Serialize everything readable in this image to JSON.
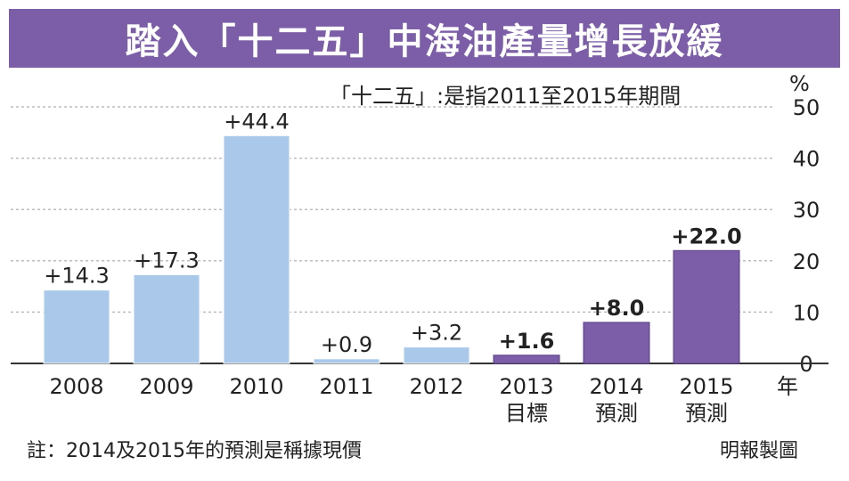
{
  "chart_data": {
    "type": "bar",
    "title": "踏入「十二五」中海油產量增長放緩",
    "subtitle": "「十二五」:是指2011至2015年期間",
    "ylabel": "%",
    "xlabel": "年",
    "ylim": [
      0,
      50
    ],
    "yticks": [
      "0",
      "10",
      "20",
      "30",
      "40",
      "50"
    ],
    "grid": true,
    "categories": [
      "2008",
      "2009",
      "2010",
      "2011",
      "2012",
      "2013",
      "2014",
      "2015"
    ],
    "category_sublabels": [
      "",
      "",
      "",
      "",
      "",
      "目標",
      "預測",
      "預測"
    ],
    "values": [
      14.3,
      17.3,
      44.4,
      0.9,
      3.2,
      1.6,
      8.0,
      22.0
    ],
    "value_labels": [
      "+14.3",
      "+17.3",
      "+44.4",
      "+0.9",
      "+3.2",
      "+1.6",
      "+8.0",
      "+22.0"
    ],
    "bar_kind": [
      "actual",
      "actual",
      "actual",
      "actual",
      "actual",
      "target",
      "forecast",
      "forecast"
    ],
    "colors": {
      "actual": "#a9c8ea",
      "target": "#7b5ea7",
      "forecast": "#7b5ea7",
      "banner": "#7b5ea7",
      "grid": "#bdbdbd"
    }
  },
  "footer": {
    "note": "註：2014及2015年的預測是稱據現價",
    "credit": "明報製圖"
  }
}
